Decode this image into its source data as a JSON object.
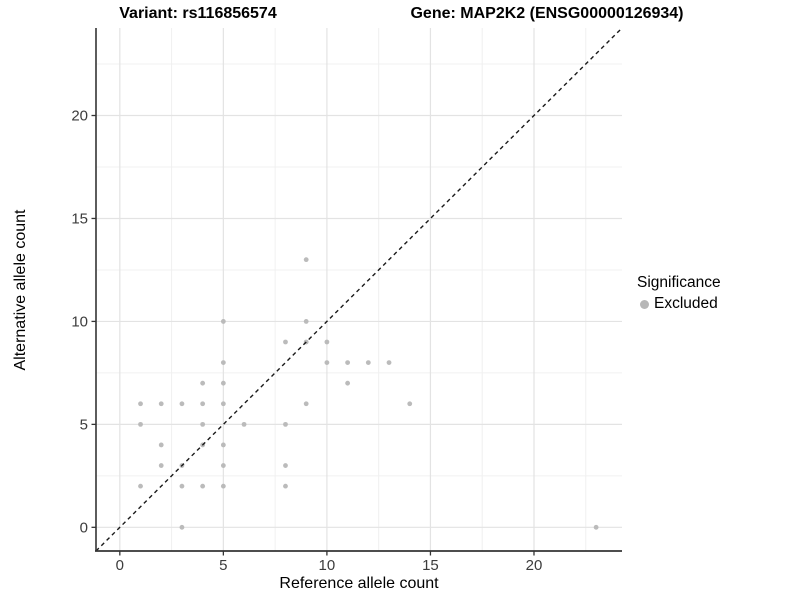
{
  "title": {
    "left": "Variant: rs116856574",
    "right": "Gene: MAP2K2 (ENSG00000126934)"
  },
  "chart_data": {
    "type": "scatter",
    "title": "Variant: rs116856574 / Gene: MAP2K2 (ENSG00000126934)",
    "xlabel": "Reference allele count",
    "ylabel": "Alternative allele count",
    "xlim": [
      -1.15,
      24.25
    ],
    "ylim": [
      -1.15,
      24.25
    ],
    "x_ticks": [
      0,
      5,
      10,
      15,
      20
    ],
    "x_tick_labels": [
      "0",
      "5",
      "10",
      "15",
      "20"
    ],
    "y_ticks": [
      0,
      5,
      10,
      15,
      20
    ],
    "y_tick_labels": [
      "0",
      "5",
      "10",
      "15",
      "20"
    ],
    "x_minor_gridlines": [
      2.5,
      7.5,
      12.5,
      17.5,
      22.5
    ],
    "y_minor_gridlines": [
      2.5,
      7.5,
      12.5,
      17.5,
      22.5
    ],
    "grid": "major and minor, light gray on white",
    "identity_line": {
      "equation": "y = x",
      "style": "dashed",
      "color": "#1a1a1a"
    },
    "series": [
      {
        "name": "Excluded",
        "color": "#b7b7b7",
        "points": [
          [
            1,
            2
          ],
          [
            1,
            5
          ],
          [
            1,
            6
          ],
          [
            2,
            3
          ],
          [
            2,
            4
          ],
          [
            2,
            6
          ],
          [
            3,
            0
          ],
          [
            3,
            2
          ],
          [
            3,
            3
          ],
          [
            3,
            6
          ],
          [
            4,
            2
          ],
          [
            4,
            4
          ],
          [
            4,
            5
          ],
          [
            4,
            6
          ],
          [
            4,
            7
          ],
          [
            5,
            2
          ],
          [
            5,
            3
          ],
          [
            5,
            4
          ],
          [
            5,
            6
          ],
          [
            5,
            7
          ],
          [
            5,
            8
          ],
          [
            5,
            10
          ],
          [
            6,
            5
          ],
          [
            8,
            2
          ],
          [
            8,
            3
          ],
          [
            8,
            5
          ],
          [
            8,
            9
          ],
          [
            9,
            6
          ],
          [
            9,
            9
          ],
          [
            9,
            10
          ],
          [
            9,
            13
          ],
          [
            10,
            8
          ],
          [
            10,
            9
          ],
          [
            11,
            7
          ],
          [
            11,
            8
          ],
          [
            12,
            8
          ],
          [
            13,
            8
          ],
          [
            14,
            6
          ],
          [
            23,
            0
          ]
        ]
      }
    ],
    "legend": {
      "title": "Significance",
      "position": "right",
      "entries": [
        {
          "label": "Excluded",
          "color": "#b7b7b7",
          "marker": "circle"
        }
      ]
    }
  },
  "colors": {
    "background": "#ffffff",
    "point": "#b7b7b7",
    "major_gridline": "#e3e3e3",
    "minor_gridline": "#f0f0f0",
    "axis_line": "#343434",
    "tick_label": "#3c3c3c",
    "identity_line": "#1a1a1a"
  }
}
